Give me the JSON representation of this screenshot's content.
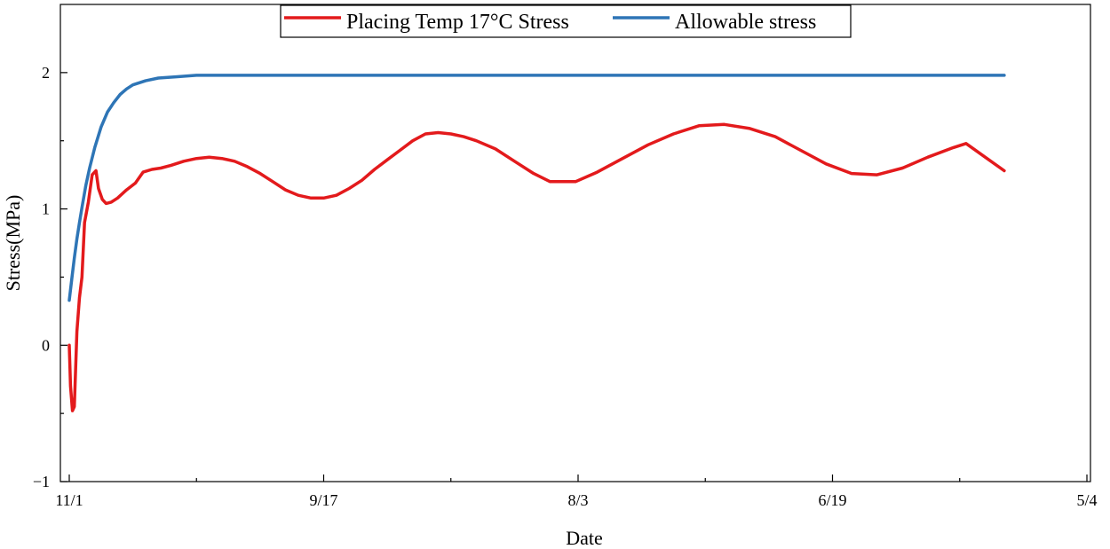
{
  "chart_data": {
    "type": "line",
    "xlabel": "Date",
    "ylabel": "Stress(MPa)",
    "xlim": [
      0,
      8
    ],
    "ylim": [
      -1,
      2.5
    ],
    "x_ticks": [
      {
        "value": 0,
        "label": "11/1"
      },
      {
        "value": 2,
        "label": "9/17"
      },
      {
        "value": 4,
        "label": "8/3"
      },
      {
        "value": 6,
        "label": "6/19"
      },
      {
        "value": 8,
        "label": "5/4"
      }
    ],
    "x_minor_ticks": [
      1,
      3,
      5,
      7
    ],
    "y_ticks": [
      {
        "value": -1,
        "label": "−1"
      },
      {
        "value": 0,
        "label": "0"
      },
      {
        "value": 1,
        "label": "1"
      },
      {
        "value": 2,
        "label": "2"
      }
    ],
    "y_minor_ticks": [
      -0.5,
      0.5,
      1.5
    ],
    "legend_position": "top-center",
    "series": [
      {
        "name": "Placing Temp 17°C Stress",
        "color": "#e31a1c",
        "points": [
          [
            0.0,
            0.0
          ],
          [
            0.01,
            -0.3
          ],
          [
            0.025,
            -0.48
          ],
          [
            0.04,
            -0.45
          ],
          [
            0.06,
            0.1
          ],
          [
            0.08,
            0.35
          ],
          [
            0.1,
            0.5
          ],
          [
            0.12,
            0.9
          ],
          [
            0.15,
            1.05
          ],
          [
            0.18,
            1.25
          ],
          [
            0.21,
            1.28
          ],
          [
            0.23,
            1.15
          ],
          [
            0.26,
            1.07
          ],
          [
            0.29,
            1.04
          ],
          [
            0.33,
            1.05
          ],
          [
            0.38,
            1.08
          ],
          [
            0.45,
            1.14
          ],
          [
            0.52,
            1.19
          ],
          [
            0.58,
            1.27
          ],
          [
            0.65,
            1.29
          ],
          [
            0.72,
            1.3
          ],
          [
            0.8,
            1.32
          ],
          [
            0.9,
            1.35
          ],
          [
            1.0,
            1.37
          ],
          [
            1.1,
            1.38
          ],
          [
            1.2,
            1.37
          ],
          [
            1.3,
            1.35
          ],
          [
            1.4,
            1.31
          ],
          [
            1.5,
            1.26
          ],
          [
            1.6,
            1.2
          ],
          [
            1.7,
            1.14
          ],
          [
            1.8,
            1.1
          ],
          [
            1.9,
            1.08
          ],
          [
            2.0,
            1.08
          ],
          [
            2.1,
            1.1
          ],
          [
            2.2,
            1.15
          ],
          [
            2.3,
            1.21
          ],
          [
            2.4,
            1.29
          ],
          [
            2.5,
            1.36
          ],
          [
            2.6,
            1.43
          ],
          [
            2.7,
            1.5
          ],
          [
            2.8,
            1.55
          ],
          [
            2.9,
            1.56
          ],
          [
            3.0,
            1.55
          ],
          [
            3.1,
            1.53
          ],
          [
            3.2,
            1.5
          ],
          [
            3.35,
            1.44
          ],
          [
            3.5,
            1.35
          ],
          [
            3.65,
            1.26
          ],
          [
            3.78,
            1.2
          ],
          [
            3.98,
            1.2
          ],
          [
            4.15,
            1.27
          ],
          [
            4.35,
            1.37
          ],
          [
            4.55,
            1.47
          ],
          [
            4.75,
            1.55
          ],
          [
            4.95,
            1.61
          ],
          [
            5.15,
            1.62
          ],
          [
            5.35,
            1.59
          ],
          [
            5.55,
            1.53
          ],
          [
            5.75,
            1.43
          ],
          [
            5.95,
            1.33
          ],
          [
            6.15,
            1.26
          ],
          [
            6.35,
            1.25
          ],
          [
            6.55,
            1.3
          ],
          [
            6.75,
            1.38
          ],
          [
            6.95,
            1.45
          ],
          [
            7.05,
            1.48
          ],
          [
            7.2,
            1.38
          ],
          [
            7.35,
            1.28
          ]
        ]
      },
      {
        "name": "Allowable stress",
        "color": "#2e75b6",
        "points": [
          [
            0.0,
            0.33
          ],
          [
            0.02,
            0.49
          ],
          [
            0.04,
            0.64
          ],
          [
            0.06,
            0.78
          ],
          [
            0.08,
            0.9
          ],
          [
            0.1,
            1.01
          ],
          [
            0.13,
            1.17
          ],
          [
            0.16,
            1.3
          ],
          [
            0.2,
            1.45
          ],
          [
            0.25,
            1.6
          ],
          [
            0.3,
            1.71
          ],
          [
            0.35,
            1.78
          ],
          [
            0.4,
            1.84
          ],
          [
            0.45,
            1.88
          ],
          [
            0.5,
            1.91
          ],
          [
            0.6,
            1.94
          ],
          [
            0.7,
            1.96
          ],
          [
            0.85,
            1.97
          ],
          [
            1.0,
            1.98
          ],
          [
            1.5,
            1.98
          ],
          [
            2.0,
            1.98
          ],
          [
            3.0,
            1.98
          ],
          [
            4.0,
            1.98
          ],
          [
            5.0,
            1.98
          ],
          [
            6.0,
            1.98
          ],
          [
            7.0,
            1.98
          ],
          [
            7.35,
            1.98
          ]
        ]
      }
    ]
  }
}
